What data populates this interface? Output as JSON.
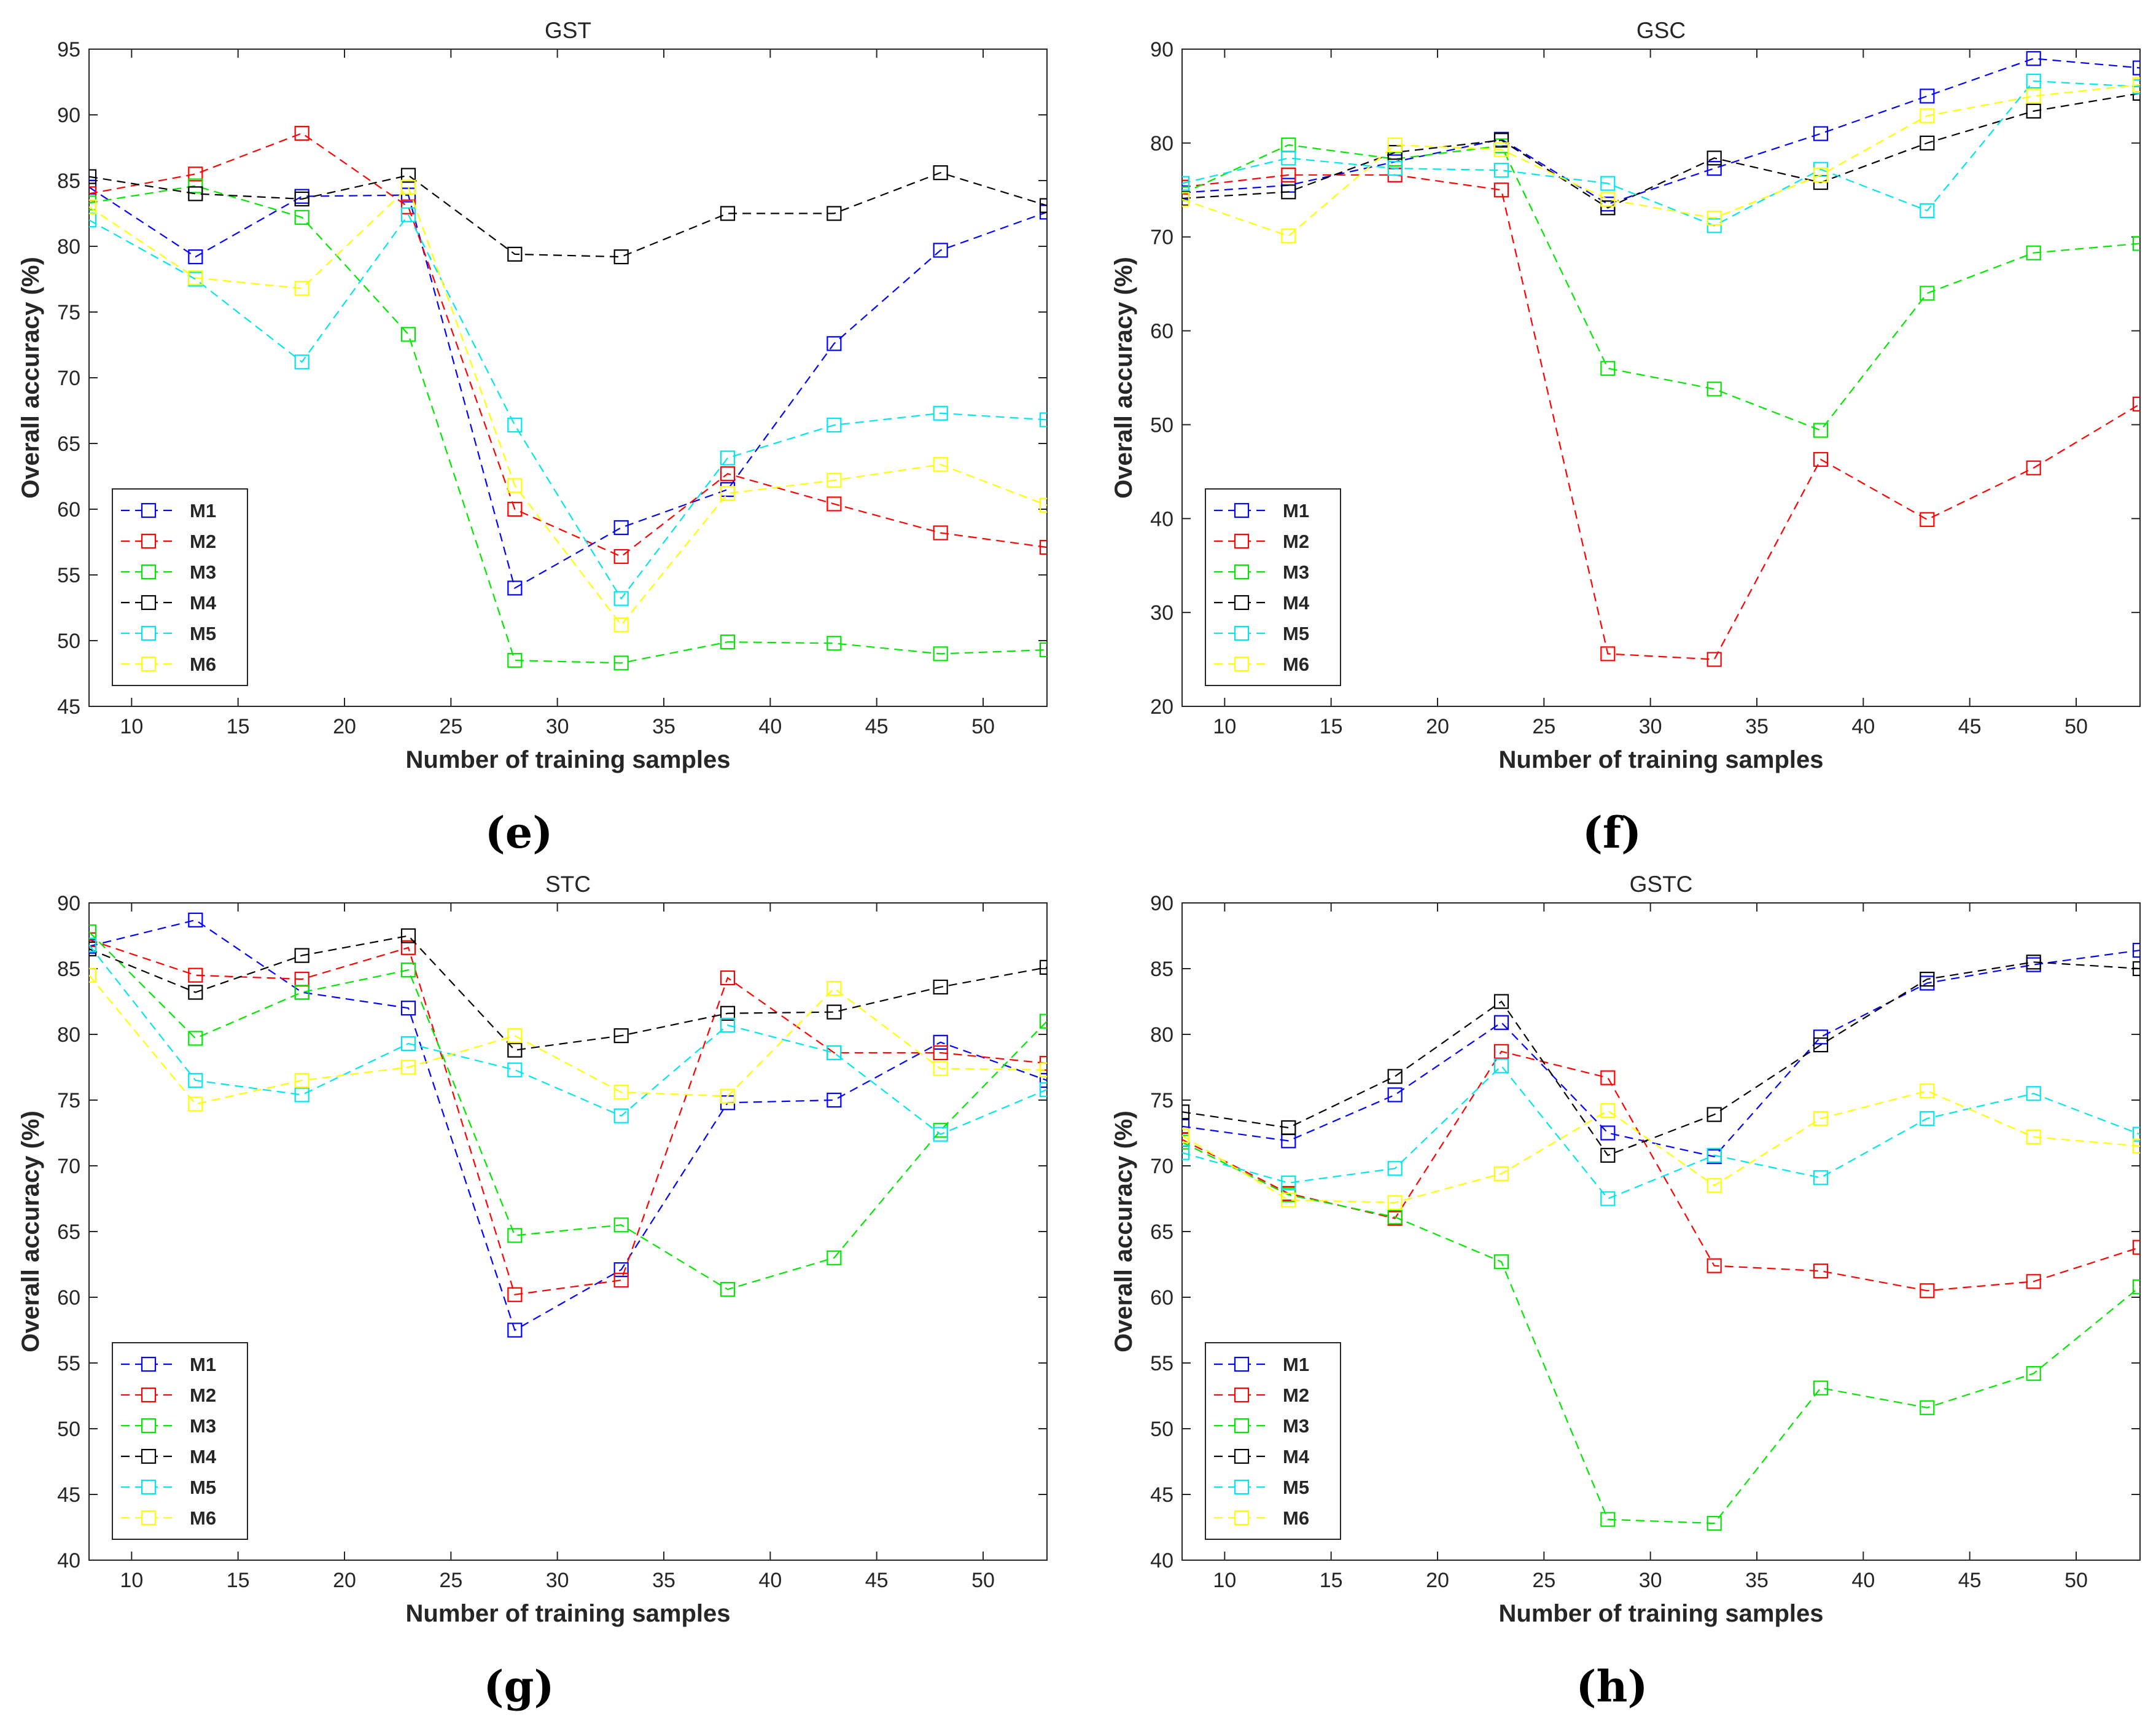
{
  "series_names": [
    "M1",
    "M2",
    "M3",
    "M4",
    "M5",
    "M6"
  ],
  "series_colors": [
    "#0000ff",
    "#ff0000",
    "#00e600",
    "#000000",
    "#00e5ee",
    "#ffff00"
  ],
  "x_ticks": [
    10,
    15,
    20,
    25,
    30,
    35,
    40,
    45,
    50
  ],
  "chart_data": [
    {
      "type": "line",
      "panel_label": "(e)",
      "title": "GST",
      "xlabel": "Number of training samples",
      "ylabel": "Overall accuracy (%)",
      "xlim": [
        8,
        53
      ],
      "ylim": [
        45,
        95
      ],
      "y_ticks": [
        45,
        50,
        55,
        60,
        65,
        70,
        75,
        80,
        85,
        90,
        95
      ],
      "legend_position": "bottom-left",
      "x": [
        8,
        13,
        18,
        23,
        28,
        33,
        38,
        43,
        48,
        53
      ],
      "series": [
        {
          "name": "M1",
          "values": [
            84.5,
            79.2,
            83.8,
            83.9,
            54.0,
            58.6,
            61.5,
            72.6,
            79.7,
            82.6
          ]
        },
        {
          "name": "M2",
          "values": [
            84.0,
            85.5,
            88.6,
            83.0,
            60.0,
            56.4,
            62.7,
            60.4,
            58.2,
            57.1
          ]
        },
        {
          "name": "M3",
          "values": [
            83.3,
            84.6,
            82.2,
            73.3,
            48.5,
            48.3,
            49.9,
            49.8,
            49.0,
            49.3
          ]
        },
        {
          "name": "M4",
          "values": [
            85.3,
            84.0,
            83.6,
            85.4,
            79.4,
            79.2,
            82.5,
            82.5,
            85.6,
            83.1
          ]
        },
        {
          "name": "M5",
          "values": [
            82.0,
            77.5,
            71.2,
            82.4,
            66.4,
            53.2,
            63.9,
            66.4,
            67.3,
            66.8
          ]
        },
        {
          "name": "M6",
          "values": [
            83.0,
            77.6,
            76.8,
            84.5,
            61.8,
            51.2,
            61.2,
            62.2,
            63.4,
            60.3
          ]
        }
      ]
    },
    {
      "type": "line",
      "panel_label": "(f)",
      "title": "GSC",
      "xlabel": "Number of training samples",
      "ylabel": "Overall accuracy (%)",
      "xlim": [
        8,
        53
      ],
      "ylim": [
        20,
        90
      ],
      "y_ticks": [
        20,
        30,
        40,
        50,
        60,
        70,
        80,
        90
      ],
      "legend_position": "bottom-left",
      "x": [
        8,
        13,
        18,
        23,
        28,
        33,
        38,
        43,
        48,
        53
      ],
      "series": [
        {
          "name": "M1",
          "values": [
            74.7,
            75.5,
            78.0,
            80.4,
            73.5,
            77.3,
            81.0,
            85.0,
            89.0,
            88.0
          ]
        },
        {
          "name": "M2",
          "values": [
            75.3,
            76.6,
            76.6,
            75.0,
            25.6,
            25.0,
            46.3,
            39.9,
            45.4,
            52.2
          ]
        },
        {
          "name": "M3",
          "values": [
            74.6,
            79.8,
            78.3,
            79.7,
            56.0,
            53.8,
            49.4,
            64.0,
            68.3,
            69.3
          ]
        },
        {
          "name": "M4",
          "values": [
            74.1,
            74.8,
            79.0,
            80.3,
            73.1,
            78.4,
            75.8,
            80.0,
            83.4,
            85.3
          ]
        },
        {
          "name": "M5",
          "values": [
            75.7,
            78.4,
            77.3,
            77.1,
            75.7,
            71.2,
            77.2,
            72.8,
            86.6,
            86.0
          ]
        },
        {
          "name": "M6",
          "values": [
            74.0,
            70.1,
            79.8,
            79.3,
            74.0,
            72.0,
            76.6,
            82.9,
            85.0,
            86.2
          ]
        }
      ]
    },
    {
      "type": "line",
      "panel_label": "(g)",
      "title": "STC",
      "xlabel": "Number of training samples",
      "ylabel": "Overall accuracy (%)",
      "xlim": [
        8,
        53
      ],
      "ylim": [
        40,
        90
      ],
      "y_ticks": [
        40,
        45,
        50,
        55,
        60,
        65,
        70,
        75,
        80,
        85,
        90
      ],
      "legend_position": "bottom-left",
      "x": [
        8,
        13,
        18,
        23,
        28,
        33,
        38,
        43,
        48,
        53
      ],
      "series": [
        {
          "name": "M1",
          "values": [
            86.7,
            88.7,
            83.2,
            82.0,
            57.5,
            62.1,
            74.8,
            75.0,
            79.4,
            76.5
          ]
        },
        {
          "name": "M2",
          "values": [
            87.2,
            84.5,
            84.2,
            86.6,
            60.2,
            61.3,
            84.3,
            78.6,
            78.6,
            77.8
          ]
        },
        {
          "name": "M3",
          "values": [
            87.8,
            79.7,
            83.2,
            84.9,
            64.7,
            65.5,
            60.6,
            63.0,
            72.7,
            81.0
          ]
        },
        {
          "name": "M4",
          "values": [
            86.5,
            83.2,
            86.0,
            87.5,
            78.8,
            79.9,
            81.6,
            81.7,
            83.6,
            85.1
          ]
        },
        {
          "name": "M5",
          "values": [
            86.8,
            76.5,
            75.4,
            79.3,
            77.3,
            73.8,
            80.7,
            78.6,
            72.4,
            75.8
          ]
        },
        {
          "name": "M6",
          "values": [
            84.5,
            74.7,
            76.5,
            77.5,
            79.9,
            75.6,
            75.3,
            83.5,
            77.4,
            77.3
          ]
        }
      ]
    },
    {
      "type": "line",
      "panel_label": "(h)",
      "title": "GSTC",
      "xlabel": "Number of training samples",
      "ylabel": "Overall accuracy (%)",
      "xlim": [
        8,
        53
      ],
      "ylim": [
        40,
        90
      ],
      "y_ticks": [
        40,
        45,
        50,
        55,
        60,
        65,
        70,
        75,
        80,
        85,
        90
      ],
      "legend_position": "bottom-left",
      "x": [
        8,
        13,
        18,
        23,
        28,
        33,
        38,
        43,
        48,
        53
      ],
      "series": [
        {
          "name": "M1",
          "values": [
            73.0,
            71.9,
            75.4,
            80.9,
            72.5,
            70.7,
            79.8,
            83.9,
            85.3,
            86.4
          ]
        },
        {
          "name": "M2",
          "values": [
            72.0,
            67.9,
            66.0,
            78.7,
            76.7,
            62.4,
            62.0,
            60.5,
            61.2,
            63.8
          ]
        },
        {
          "name": "M3",
          "values": [
            71.8,
            67.8,
            66.1,
            62.7,
            43.1,
            42.8,
            53.1,
            51.6,
            54.2,
            60.8
          ]
        },
        {
          "name": "M4",
          "values": [
            74.1,
            72.9,
            76.8,
            82.5,
            70.8,
            73.9,
            79.2,
            84.2,
            85.5,
            85.0
          ]
        },
        {
          "name": "M5",
          "values": [
            71.0,
            68.7,
            69.8,
            77.6,
            67.5,
            70.8,
            69.1,
            73.6,
            75.5,
            72.4
          ]
        },
        {
          "name": "M6",
          "values": [
            72.3,
            67.4,
            67.2,
            69.4,
            74.2,
            68.5,
            73.6,
            75.7,
            72.2,
            71.5
          ]
        }
      ]
    }
  ]
}
